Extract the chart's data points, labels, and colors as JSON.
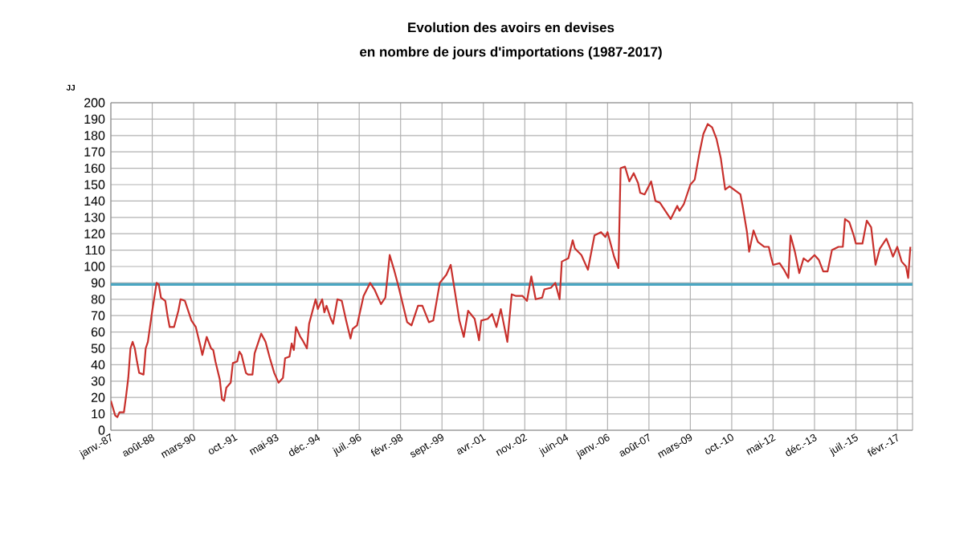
{
  "chart_data": {
    "type": "line",
    "title": "Evolution des avoirs en devises",
    "subtitle": "en nombre de jours d'importations (1987-2017)",
    "ylabel": "JJ",
    "color": "#c8302c",
    "x": [
      "1987-01",
      "1987-03",
      "1987-04",
      "1987-05",
      "1987-07",
      "1987-08",
      "1987-09",
      "1987-10",
      "1987-11",
      "1987-12",
      "1988-01",
      "1988-02",
      "1988-04",
      "1988-05",
      "1988-06",
      "1988-08",
      "1988-10",
      "1988-11",
      "1988-12",
      "1989-02",
      "1989-03",
      "1989-04",
      "1989-06",
      "1989-08",
      "1989-09",
      "1989-11",
      "1990-01",
      "1990-02",
      "1990-04",
      "1990-06",
      "1990-07",
      "1990-09",
      "1990-11",
      "1990-12",
      "1991-01",
      "1991-03",
      "1991-04",
      "1991-05",
      "1991-06",
      "1991-08",
      "1991-09",
      "1991-11",
      "1991-12",
      "1992-01",
      "1992-03",
      "1992-04",
      "1992-06",
      "1992-07",
      "1992-10",
      "1992-12",
      "1993-02",
      "1993-04",
      "1993-06",
      "1993-08",
      "1993-09",
      "1993-11",
      "1993-12",
      "1994-01",
      "1994-02",
      "1994-04",
      "1994-05",
      "1994-07",
      "1994-08",
      "1994-10",
      "1994-11",
      "1994-12",
      "1995-02",
      "1995-03",
      "1995-04",
      "1995-06",
      "1995-07",
      "1995-09",
      "1995-11",
      "1996-01",
      "1996-03",
      "1996-04",
      "1996-06",
      "1996-09",
      "1996-12",
      "1997-02",
      "1997-05",
      "1997-07",
      "1997-09",
      "1997-11",
      "1998-01",
      "1998-05",
      "1998-07",
      "1998-10",
      "1998-12",
      "1999-03",
      "1999-05",
      "1999-08",
      "1999-11",
      "2000-01",
      "2000-03",
      "2000-05",
      "2000-07",
      "2000-09",
      "2000-12",
      "2001-02",
      "2001-03",
      "2001-06",
      "2001-08",
      "2001-10",
      "2001-12",
      "2002-03",
      "2002-05",
      "2002-07",
      "2002-10",
      "2002-12",
      "2003-02",
      "2003-04",
      "2003-07",
      "2003-08",
      "2003-11",
      "2004-01",
      "2004-03",
      "2004-04",
      "2004-07",
      "2004-09",
      "2004-10",
      "2005-01",
      "2005-04",
      "2005-07",
      "2005-10",
      "2005-12",
      "2006-01",
      "2006-04",
      "2006-06",
      "2006-07",
      "2006-09",
      "2006-11",
      "2007-01",
      "2007-03",
      "2007-04",
      "2007-06",
      "2007-09",
      "2007-11",
      "2008-01",
      "2008-03",
      "2008-06",
      "2008-09",
      "2008-10",
      "2008-12",
      "2009-03",
      "2009-05",
      "2009-07",
      "2009-09",
      "2009-11",
      "2010-01",
      "2010-03",
      "2010-05",
      "2010-07",
      "2010-09",
      "2010-11",
      "2011-02",
      "2011-03",
      "2011-05",
      "2011-06",
      "2011-08",
      "2011-10",
      "2012-01",
      "2012-03",
      "2012-04",
      "2012-05",
      "2012-08",
      "2012-10",
      "2012-12",
      "2013-01",
      "2013-03",
      "2013-05",
      "2013-07",
      "2013-09",
      "2013-12",
      "2014-02",
      "2014-04",
      "2014-06",
      "2014-08",
      "2014-11",
      "2015-01",
      "2015-02",
      "2015-04",
      "2015-06",
      "2015-07",
      "2015-10",
      "2015-12",
      "2016-02",
      "2016-04",
      "2016-06",
      "2016-09",
      "2016-11",
      "2016-12",
      "2017-02",
      "2017-04",
      "2017-06",
      "2017-07",
      "2017-08"
    ],
    "values": [
      18,
      9,
      8,
      11,
      11,
      21,
      32,
      50,
      54,
      50,
      42,
      35,
      34,
      50,
      54,
      73,
      90,
      89,
      81,
      79,
      70,
      63,
      63,
      73,
      80,
      79,
      71,
      67,
      63,
      52,
      46,
      57,
      50,
      49,
      42,
      31,
      19,
      18,
      26,
      29,
      41,
      42,
      48,
      46,
      35,
      34,
      34,
      47,
      59,
      54,
      44,
      35,
      29,
      32,
      44,
      45,
      53,
      49,
      63,
      57,
      55,
      50,
      65,
      75,
      80,
      74,
      80,
      72,
      76,
      68,
      65,
      80,
      79,
      67,
      56,
      62,
      64,
      82,
      90,
      86,
      77,
      81,
      107,
      98,
      88,
      66,
      64,
      76,
      76,
      66,
      67,
      90,
      95,
      101,
      84,
      67,
      57,
      73,
      68,
      55,
      67,
      68,
      71,
      63,
      74,
      54,
      83,
      82,
      82,
      79,
      94,
      80,
      81,
      86,
      87,
      90,
      80,
      103,
      105,
      116,
      111,
      107,
      98,
      119,
      121,
      118,
      121,
      106,
      99,
      160,
      161,
      152,
      157,
      151,
      145,
      144,
      152,
      140,
      139,
      135,
      129,
      137,
      134,
      138,
      150,
      153,
      168,
      181,
      187,
      185,
      178,
      166,
      147,
      149,
      147,
      144,
      137,
      121,
      109,
      122,
      115,
      112,
      112,
      106,
      101,
      102,
      98,
      93,
      119,
      109,
      96,
      105,
      103,
      107,
      104,
      97,
      97,
      110,
      112,
      112,
      129,
      127,
      119,
      114,
      114,
      128,
      124,
      101,
      111,
      117,
      110,
      106,
      112,
      103,
      100,
      93,
      112
    ],
    "xlim": [
      "1987-01",
      "2017-09"
    ],
    "xticks": [
      {
        "value": "1987-01",
        "label": "janv.-87"
      },
      {
        "value": "1988-08",
        "label": "août-88"
      },
      {
        "value": "1990-03",
        "label": "mars-90"
      },
      {
        "value": "1991-10",
        "label": "oct.-91"
      },
      {
        "value": "1993-05",
        "label": "mai-93"
      },
      {
        "value": "1994-12",
        "label": "déc.-94"
      },
      {
        "value": "1996-07",
        "label": "juil.-96"
      },
      {
        "value": "1998-02",
        "label": "févr.-98"
      },
      {
        "value": "1999-09",
        "label": "sept.-99"
      },
      {
        "value": "2001-04",
        "label": "avr.-01"
      },
      {
        "value": "2002-11",
        "label": "nov.-02"
      },
      {
        "value": "2004-06",
        "label": "juin-04"
      },
      {
        "value": "2006-01",
        "label": "janv.-06"
      },
      {
        "value": "2007-08",
        "label": "août-07"
      },
      {
        "value": "2009-03",
        "label": "mars-09"
      },
      {
        "value": "2010-10",
        "label": "oct.-10"
      },
      {
        "value": "2012-05",
        "label": "mai-12"
      },
      {
        "value": "2013-12",
        "label": "déc.-13"
      },
      {
        "value": "2015-07",
        "label": "juil.-15"
      },
      {
        "value": "2017-02",
        "label": "févr.-17"
      }
    ],
    "ylim": [
      0,
      200
    ],
    "yticks": [
      0,
      10,
      20,
      30,
      40,
      50,
      60,
      70,
      80,
      90,
      100,
      110,
      120,
      130,
      140,
      150,
      160,
      170,
      180,
      190,
      200
    ],
    "grid": true,
    "ref_lines": [
      {
        "axis": "y",
        "value": 89,
        "color": "#4aa6c2"
      }
    ]
  }
}
